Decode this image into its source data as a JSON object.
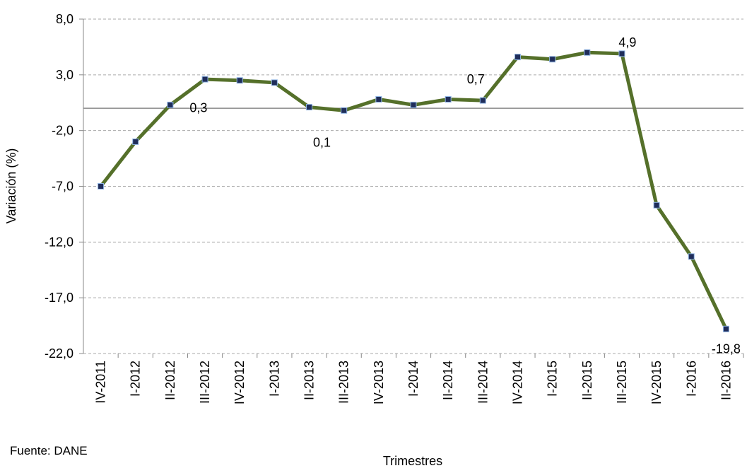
{
  "chart_data": {
    "type": "line",
    "y_label": "Variación (%)",
    "x_label": "Trimestres",
    "source": "Fuente: DANE",
    "categories": [
      "IV-2011",
      "I-2012",
      "II-2012",
      "III-2012",
      "IV-2012",
      "I-2013",
      "II-2013",
      "III-2013",
      "IV-2013",
      "I-2014",
      "II-2014",
      "III-2014",
      "IV-2014",
      "I-2015",
      "II-2015",
      "III-2015",
      "IV-2015",
      "I-2016",
      "II-2016"
    ],
    "series": [
      {
        "color": "#55702a",
        "values": [
          -7.0,
          -3.0,
          0.3,
          2.6,
          2.5,
          2.3,
          0.1,
          -0.2,
          0.8,
          0.3,
          0.8,
          0.7,
          4.6,
          4.4,
          5.0,
          4.9,
          -8.7,
          -13.3,
          -19.8
        ],
        "value_labels": [
          null,
          null,
          "0,3",
          null,
          null,
          null,
          "0,1",
          null,
          null,
          null,
          null,
          "0,7",
          null,
          null,
          null,
          "4,9",
          null,
          null,
          "-19,8"
        ]
      }
    ],
    "ylim": [
      -22,
      8
    ],
    "yticks": [
      {
        "value": -22,
        "label": "-22,0"
      },
      {
        "value": -17,
        "label": "-17,0"
      },
      {
        "value": -12,
        "label": "-12,0"
      },
      {
        "value": -7,
        "label": "-7,0"
      },
      {
        "value": -2,
        "label": "-2,0"
      },
      {
        "value": 3,
        "label": "3,0"
      },
      {
        "value": 8,
        "label": "8,0"
      }
    ],
    "grid": true
  }
}
